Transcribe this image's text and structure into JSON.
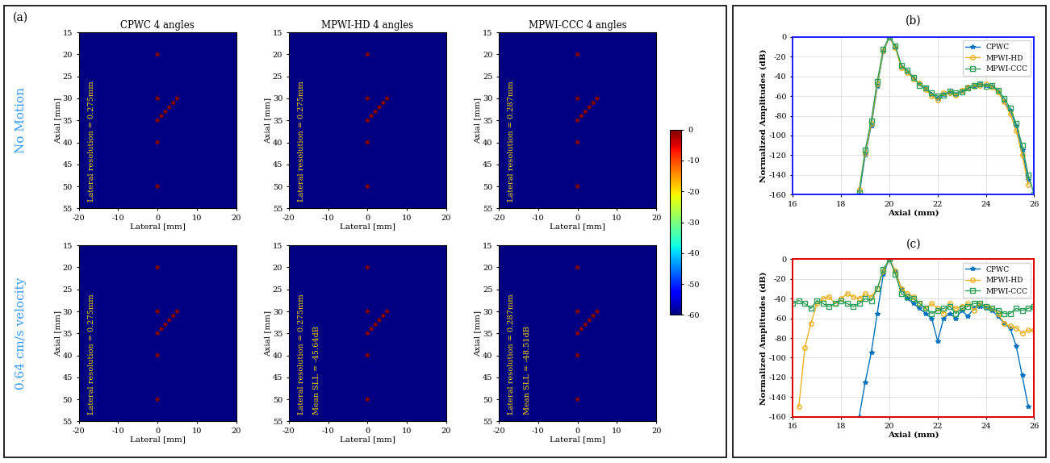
{
  "figure": {
    "panel_labels": [
      "(a)",
      "(b)",
      "(c)"
    ],
    "row_labels": [
      "No Motion",
      "0.64 cm/s velocity"
    ],
    "colorbar": {
      "range": [
        -60,
        0
      ],
      "ticks": [
        0,
        -10,
        -20,
        -30,
        -40,
        -50,
        -60
      ]
    }
  },
  "chart_data": [
    {
      "type": "image",
      "title": "CPWC 4 angles",
      "xlabel": "Lateral [mm]",
      "ylabel": "Axial [mm]",
      "xlim": [
        -20,
        20
      ],
      "ylim": [
        55,
        15
      ],
      "xticks": [
        -20,
        -10,
        0,
        10,
        20
      ],
      "yticks": [
        15,
        20,
        25,
        30,
        35,
        40,
        45,
        50,
        55
      ],
      "scatterers": {
        "x": [
          0,
          0,
          0,
          0,
          0,
          1,
          2,
          3,
          4,
          5
        ],
        "y": [
          20,
          30,
          40,
          50,
          35,
          34,
          33,
          32,
          31,
          30
        ],
        "amplitude_db": [
          0,
          0,
          0,
          0,
          0,
          0,
          0,
          0,
          0,
          0
        ]
      },
      "annotations": [
        "Lateral resolution = 0.275mm"
      ]
    },
    {
      "type": "image",
      "title": "MPWI-HD 4 angles",
      "xlabel": "Lateral [mm]",
      "ylabel": "Axial [mm]",
      "xlim": [
        -20,
        20
      ],
      "ylim": [
        55,
        15
      ],
      "xticks": [
        -20,
        -10,
        0,
        10,
        20
      ],
      "yticks": [
        15,
        20,
        25,
        30,
        35,
        40,
        45,
        50,
        55
      ],
      "scatterers": {
        "x": [
          0,
          0,
          0,
          0,
          0,
          1,
          2,
          3,
          4,
          5
        ],
        "y": [
          20,
          30,
          40,
          50,
          35,
          34,
          33,
          32,
          31,
          30
        ],
        "amplitude_db": [
          0,
          0,
          0,
          0,
          0,
          0,
          0,
          0,
          0,
          0
        ]
      },
      "annotations": [
        "Lateral resolution = 0.275mm"
      ]
    },
    {
      "type": "image",
      "title": "MPWI-CCC 4 angles",
      "xlabel": "Lateral [mm]",
      "ylabel": "Axial [mm]",
      "xlim": [
        -20,
        20
      ],
      "ylim": [
        55,
        15
      ],
      "xticks": [
        -20,
        -10,
        0,
        10,
        20
      ],
      "yticks": [
        15,
        20,
        25,
        30,
        35,
        40,
        45,
        50,
        55
      ],
      "scatterers": {
        "x": [
          0,
          0,
          0,
          0,
          0,
          1,
          2,
          3,
          4,
          5
        ],
        "y": [
          20,
          30,
          40,
          50,
          35,
          34,
          33,
          32,
          31,
          30
        ],
        "amplitude_db": [
          0,
          0,
          0,
          0,
          0,
          0,
          0,
          0,
          0,
          0
        ]
      },
      "annotations": [
        "Lateral resolution = 0.287mm"
      ]
    },
    {
      "type": "image",
      "xlabel": "Lateral [mm]",
      "ylabel": "Axial [mm]",
      "xlim": [
        -20,
        20
      ],
      "ylim": [
        55,
        15
      ],
      "xticks": [
        -20,
        -10,
        0,
        10,
        20
      ],
      "yticks": [
        15,
        20,
        25,
        30,
        35,
        40,
        45,
        50,
        55
      ],
      "scatterers": {
        "x": [
          0,
          0,
          0,
          0,
          0,
          1,
          2,
          3,
          4,
          5
        ],
        "y": [
          20,
          30,
          40,
          50,
          35,
          34,
          33,
          32,
          31,
          30
        ],
        "amplitude_db": [
          0,
          0,
          0,
          0,
          0,
          0,
          0,
          0,
          0,
          0
        ]
      },
      "annotations": [
        "Lateral resolution = 0.275mm"
      ]
    },
    {
      "type": "image",
      "xlabel": "Lateral [mm]",
      "ylabel": "Axial [mm]",
      "xlim": [
        -20,
        20
      ],
      "ylim": [
        55,
        15
      ],
      "xticks": [
        -20,
        -10,
        0,
        10,
        20
      ],
      "yticks": [
        15,
        20,
        25,
        30,
        35,
        40,
        45,
        50,
        55
      ],
      "scatterers": {
        "x": [
          0,
          0,
          0,
          0,
          0,
          1,
          2,
          3,
          4,
          5
        ],
        "y": [
          20,
          30,
          40,
          50,
          35,
          34,
          33,
          32,
          31,
          30
        ],
        "amplitude_db": [
          0,
          0,
          0,
          0,
          0,
          0,
          0,
          0,
          0,
          0
        ]
      },
      "annotations": [
        "Lateral resolution = 0.275mm",
        "Mean SLL = -45.64dB"
      ]
    },
    {
      "type": "image",
      "xlabel": "Lateral [mm]",
      "ylabel": "Axial [mm]",
      "xlim": [
        -20,
        20
      ],
      "ylim": [
        55,
        15
      ],
      "xticks": [
        -20,
        -10,
        0,
        10,
        20
      ],
      "yticks": [
        15,
        20,
        25,
        30,
        35,
        40,
        45,
        50,
        55
      ],
      "scatterers": {
        "x": [
          0,
          0,
          0,
          0,
          0,
          1,
          2,
          3,
          4,
          5
        ],
        "y": [
          20,
          30,
          40,
          50,
          35,
          34,
          33,
          32,
          31,
          30
        ],
        "amplitude_db": [
          0,
          0,
          0,
          0,
          0,
          0,
          0,
          0,
          0,
          0
        ]
      },
      "annotations": [
        "Lateral resolution = 0.287mm",
        "Mean SLL = -48.51dB"
      ]
    },
    {
      "type": "line",
      "xlabel": "Axial (mm)",
      "ylabel": "Normalized Amplitudes (dB)",
      "xlim": [
        16,
        26
      ],
      "ylim": [
        -160,
        0
      ],
      "xticks": [
        16,
        18,
        20,
        22,
        24,
        26
      ],
      "yticks": [
        -160,
        -140,
        -120,
        -100,
        -80,
        -60,
        -40,
        -20,
        0
      ],
      "grid": true,
      "legend": "upper right",
      "x": [
        16,
        16.25,
        16.5,
        16.75,
        17,
        17.25,
        17.5,
        17.75,
        18,
        18.25,
        18.5,
        18.75,
        19,
        19.25,
        19.5,
        19.75,
        20,
        20.25,
        20.5,
        20.75,
        21,
        21.25,
        21.5,
        21.75,
        22,
        22.25,
        22.5,
        22.75,
        23,
        23.25,
        23.5,
        23.75,
        24,
        24.25,
        24.5,
        24.75,
        25,
        25.25,
        25.5,
        25.75,
        26
      ],
      "series": [
        {
          "name": "CPWC",
          "color": "#0072BD",
          "marker": "star",
          "values": [
            null,
            null,
            null,
            null,
            null,
            null,
            null,
            null,
            null,
            null,
            null,
            -160,
            -120,
            -90,
            -50,
            -15,
            0,
            -10,
            -30,
            -35,
            -42,
            -48,
            -52,
            -58,
            -62,
            -58,
            -56,
            -58,
            -55,
            -52,
            -50,
            -48,
            -49,
            -50,
            -55,
            -65,
            -75,
            -90,
            -115,
            -145,
            null
          ]
        },
        {
          "name": "MPWI-HD",
          "color": "#EDB120",
          "marker": "circle",
          "values": [
            null,
            null,
            null,
            null,
            null,
            null,
            null,
            null,
            null,
            null,
            null,
            -155,
            -118,
            -88,
            -48,
            -14,
            0,
            -11,
            -31,
            -36,
            -43,
            -47,
            -53,
            -60,
            -64,
            -57,
            -57,
            -59,
            -54,
            -51,
            -50,
            -49,
            -48,
            -51,
            -56,
            -66,
            -78,
            -95,
            -120,
            -150,
            null
          ]
        },
        {
          "name": "MPWI-CCC",
          "color": "#2E9E5B",
          "marker": "square",
          "values": [
            null,
            null,
            null,
            null,
            null,
            null,
            null,
            null,
            null,
            null,
            null,
            -158,
            -115,
            -85,
            -45,
            -12,
            0,
            -9,
            -29,
            -34,
            -41,
            -49,
            -52,
            -57,
            -60,
            -59,
            -55,
            -57,
            -56,
            -52,
            -49,
            -48,
            -50,
            -49,
            -54,
            -62,
            -72,
            -88,
            -110,
            -140,
            -160
          ]
        }
      ]
    },
    {
      "type": "line",
      "xlabel": "Axial (mm)",
      "ylabel": "Normalized Amplitudes (dB)",
      "xlim": [
        16,
        26
      ],
      "ylim": [
        -160,
        0
      ],
      "xticks": [
        16,
        18,
        20,
        22,
        24,
        26
      ],
      "yticks": [
        -160,
        -140,
        -120,
        -100,
        -80,
        -60,
        -40,
        -20,
        0
      ],
      "grid": true,
      "legend": "upper right",
      "x": [
        16,
        16.25,
        16.5,
        16.75,
        17,
        17.25,
        17.5,
        17.75,
        18,
        18.25,
        18.5,
        18.75,
        19,
        19.25,
        19.5,
        19.75,
        20,
        20.25,
        20.5,
        20.75,
        21,
        21.25,
        21.5,
        21.75,
        22,
        22.25,
        22.5,
        22.75,
        23,
        23.25,
        23.5,
        23.75,
        24,
        24.25,
        24.5,
        24.75,
        25,
        25.25,
        25.5,
        25.75,
        26
      ],
      "series": [
        {
          "name": "CPWC",
          "color": "#0072BD",
          "marker": "star",
          "values": [
            null,
            null,
            null,
            null,
            null,
            null,
            null,
            null,
            null,
            null,
            null,
            -160,
            -125,
            -95,
            -55,
            -15,
            0,
            -12,
            -30,
            -40,
            -45,
            -50,
            -55,
            -60,
            -83,
            -60,
            -55,
            -60,
            -52,
            -58,
            -50,
            -48,
            -50,
            -52,
            -58,
            -65,
            -70,
            -88,
            -118,
            -150,
            null
          ]
        },
        {
          "name": "MPWI-HD",
          "color": "#EDB120",
          "marker": "circle",
          "values": [
            null,
            -150,
            -90,
            -65,
            -45,
            -40,
            -38,
            -45,
            -40,
            -35,
            -38,
            -40,
            -35,
            -38,
            -30,
            -12,
            0,
            -12,
            -30,
            -35,
            -38,
            -45,
            -50,
            -45,
            -50,
            -55,
            -45,
            -50,
            -48,
            -45,
            -52,
            -45,
            -48,
            -50,
            -55,
            -65,
            -68,
            -70,
            -75,
            -72,
            -72
          ]
        },
        {
          "name": "MPWI-CCC",
          "color": "#2E9E5B",
          "marker": "square",
          "values": [
            -45,
            -42,
            -45,
            -50,
            -42,
            -45,
            -48,
            -45,
            -42,
            -45,
            -48,
            -45,
            -40,
            -42,
            -30,
            -10,
            0,
            -15,
            -35,
            -38,
            -40,
            -45,
            -50,
            -55,
            -52,
            -50,
            -48,
            -55,
            -50,
            -48,
            -45,
            -45,
            -48,
            -50,
            -52,
            -55,
            -55,
            -50,
            -52,
            -50,
            -48
          ]
        }
      ]
    }
  ]
}
